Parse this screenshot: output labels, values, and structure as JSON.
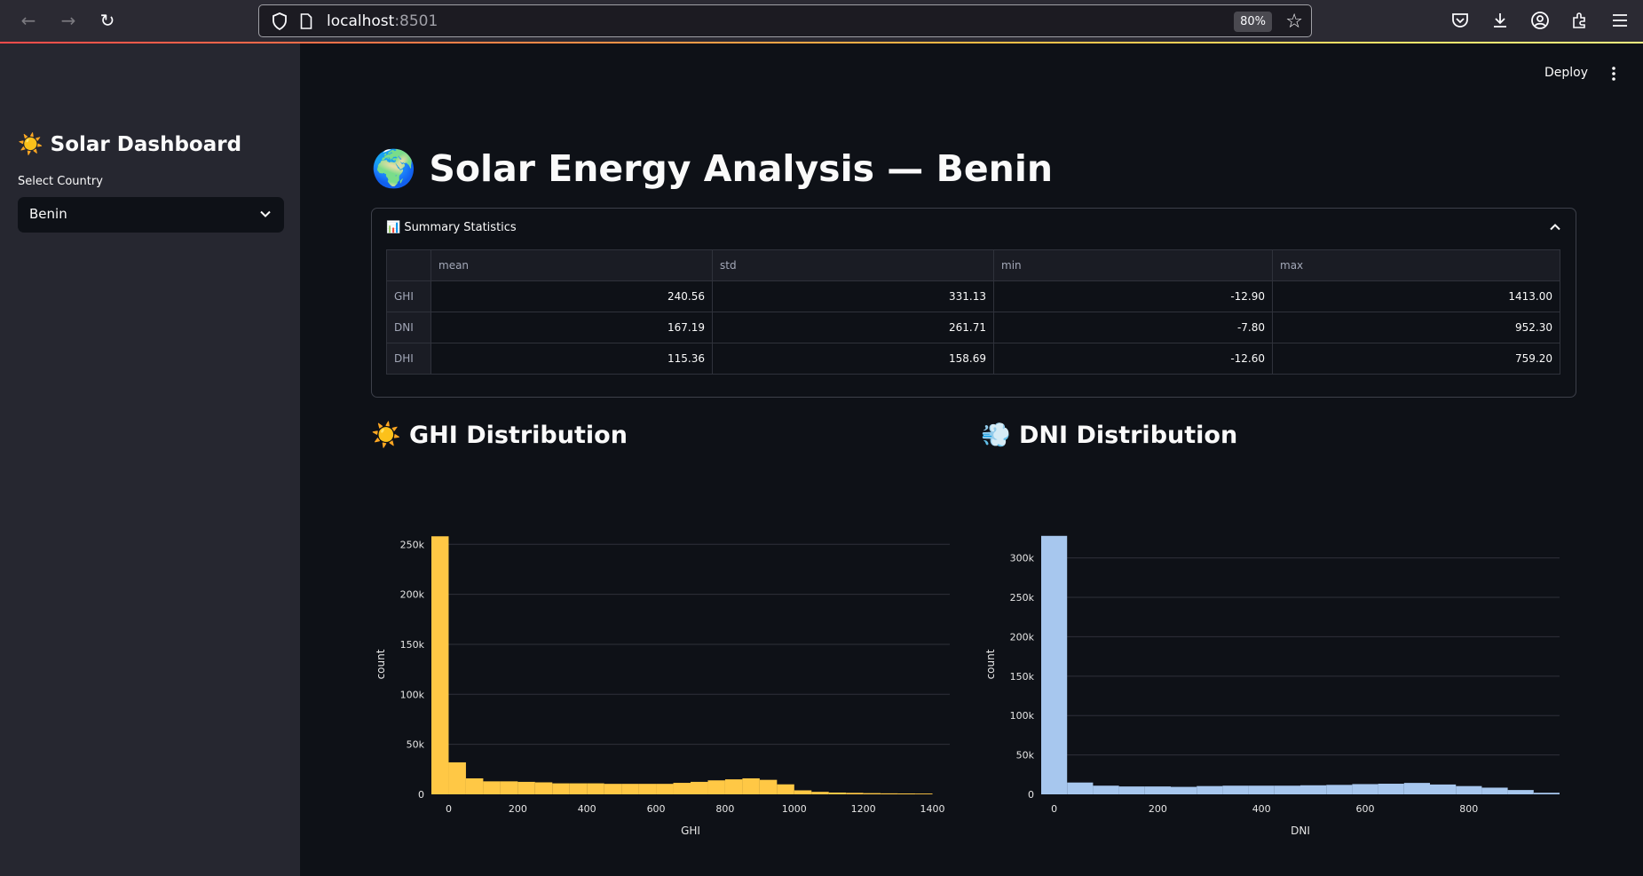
{
  "browser": {
    "url_host": "localhost",
    "url_port": ":8501",
    "zoom": "80%"
  },
  "sidebar": {
    "title": "☀️ Solar Dashboard",
    "select_label": "Select Country",
    "selected_country": "Benin"
  },
  "header": {
    "deploy_label": "Deploy"
  },
  "main": {
    "title": "🌍 Solar Energy Analysis — Benin",
    "summary": {
      "label": "📊 Summary Statistics",
      "columns": [
        "",
        "mean",
        "std",
        "min",
        "max"
      ],
      "rows": [
        {
          "index": "GHI",
          "mean": "240.56",
          "std": "331.13",
          "min": "-12.90",
          "max": "1413.00"
        },
        {
          "index": "DNI",
          "mean": "167.19",
          "std": "261.71",
          "min": "-7.80",
          "max": "952.30"
        },
        {
          "index": "DHI",
          "mean": "115.36",
          "std": "158.69",
          "min": "-12.60",
          "max": "759.20"
        }
      ]
    },
    "ghi_heading": "☀️ GHI Distribution",
    "dni_heading": "💨 DNI Distribution"
  },
  "colors": {
    "ghi_bar": "#ffc845",
    "dni_bar": "#a7c7ee",
    "grid": "#2e313a",
    "axis_text": "#e6e6e6"
  },
  "chart_data": [
    {
      "type": "bar",
      "title": "☀️ GHI Distribution",
      "xlabel": "GHI",
      "ylabel": "count",
      "xlim": [
        -50,
        1450
      ],
      "ylim": [
        0,
        260000
      ],
      "xticks": [
        0,
        200,
        400,
        600,
        800,
        1000,
        1200,
        1400
      ],
      "xtick_labels": [
        "0",
        "200",
        "400",
        "600",
        "800",
        "1000",
        "1200",
        "1400"
      ],
      "yticks": [
        0,
        50000,
        100000,
        150000,
        200000,
        250000
      ],
      "ytick_labels": [
        "0",
        "50k",
        "100k",
        "150k",
        "200k",
        "250k"
      ],
      "bin_width": 50,
      "x": [
        -25,
        25,
        75,
        125,
        175,
        225,
        275,
        325,
        375,
        425,
        475,
        525,
        575,
        625,
        675,
        725,
        775,
        825,
        875,
        925,
        975,
        1025,
        1075,
        1125,
        1175,
        1225,
        1275,
        1325,
        1375
      ],
      "values": [
        258000,
        32000,
        16000,
        13000,
        13000,
        12500,
        12000,
        11000,
        11000,
        11000,
        10500,
        10500,
        10500,
        10500,
        11500,
        12500,
        14000,
        15000,
        16000,
        14500,
        10000,
        4000,
        2500,
        1800,
        1500,
        1200,
        1000,
        900,
        800
      ],
      "grid": true
    },
    {
      "type": "bar",
      "title": "💨 DNI Distribution",
      "xlabel": "DNI",
      "ylabel": "count",
      "xlim": [
        -25,
        975
      ],
      "ylim": [
        0,
        330000
      ],
      "xticks": [
        0,
        200,
        400,
        600,
        800
      ],
      "xtick_labels": [
        "0",
        "200",
        "400",
        "600",
        "800"
      ],
      "yticks": [
        0,
        50000,
        100000,
        150000,
        200000,
        250000,
        300000
      ],
      "ytick_labels": [
        "0",
        "50k",
        "100k",
        "150k",
        "200k",
        "250k",
        "300k"
      ],
      "bin_width": 50,
      "x": [
        0,
        50,
        100,
        150,
        200,
        250,
        300,
        350,
        400,
        450,
        500,
        550,
        600,
        650,
        700,
        750,
        800,
        850,
        900,
        950
      ],
      "values": [
        328000,
        15000,
        11000,
        10000,
        10000,
        9500,
        10500,
        11000,
        11000,
        11000,
        11500,
        12000,
        13000,
        13500,
        14500,
        12500,
        10500,
        8500,
        5500,
        2000
      ],
      "grid": true
    }
  ]
}
